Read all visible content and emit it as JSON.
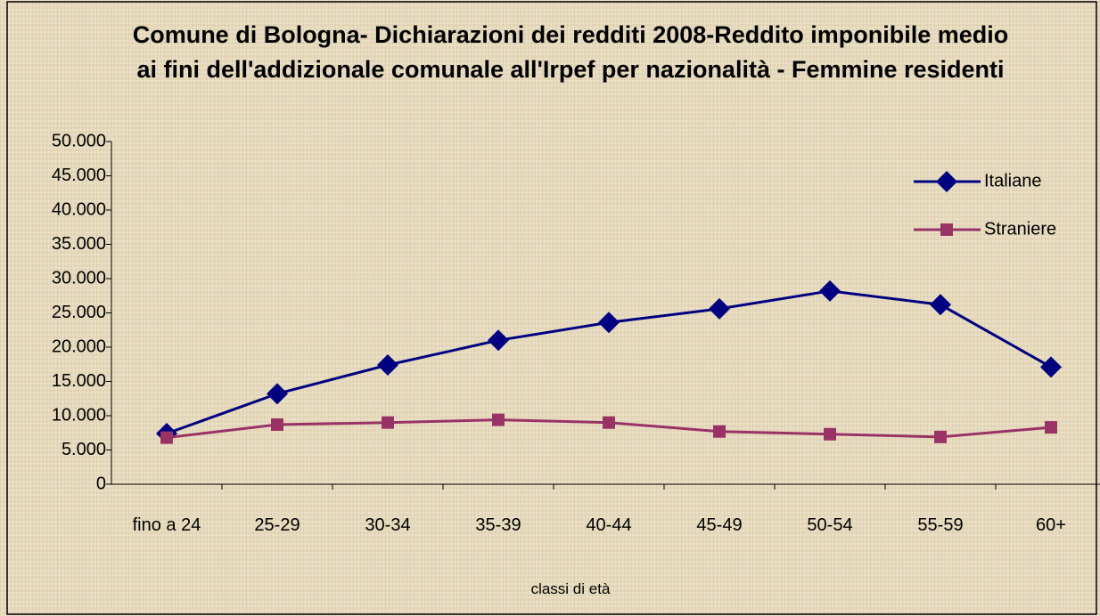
{
  "chart_data": {
    "type": "line",
    "title": "Comune di Bologna- Dichiarazioni dei redditi 2008-Reddito imponibile medio ai fini dell'addizionale comunale all'Irpef per nazionalità - Femmine residenti",
    "x_label": "classi di età",
    "categories": [
      "fino a 24",
      "25-29",
      "30-34",
      "35-39",
      "40-44",
      "45-49",
      "50-54",
      "55-59",
      "60+"
    ],
    "series": [
      {
        "name": "Italiane",
        "color": "#000080",
        "marker": "diamond",
        "values": [
          7400,
          13200,
          17400,
          21000,
          23600,
          25600,
          28200,
          26200,
          17100
        ]
      },
      {
        "name": "Straniere",
        "color": "#993366",
        "marker": "square",
        "values": [
          6800,
          8700,
          9000,
          9400,
          9000,
          7700,
          7300,
          6900,
          8300
        ]
      }
    ],
    "ylim": [
      0,
      50000
    ],
    "yticks": [
      0,
      {
        "value": 5000,
        "label": "5.000"
      },
      {
        "value": 10000,
        "label": "10.000"
      },
      {
        "value": 15000,
        "label": "15.000"
      },
      {
        "value": 20000,
        "label": "20.000"
      },
      {
        "value": 25000,
        "label": "25.000"
      },
      {
        "value": 30000,
        "label": "30.000"
      },
      {
        "value": 35000,
        "label": "35.000"
      },
      {
        "value": 40000,
        "label": "40.000"
      },
      {
        "value": 45000,
        "label": "45.000"
      },
      {
        "value": 50000,
        "label": "50.000"
      }
    ],
    "grid": false,
    "legend": "upper right"
  }
}
